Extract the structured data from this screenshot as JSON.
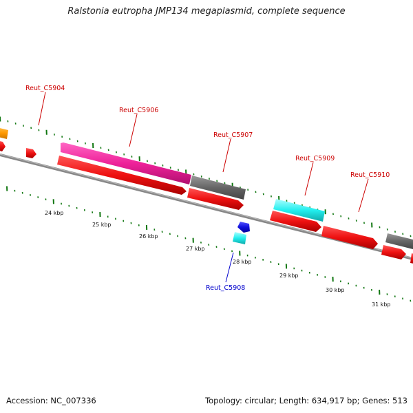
{
  "title": "Ralstonia eutropha JMP134 megaplasmid, complete sequence",
  "footer": {
    "accession": "Accession: NC_007336",
    "summary": "Topology: circular; Length: 634,917 bp; Genes: 513"
  },
  "colors": {
    "forward_cds": "#ee1111",
    "reverse_cds": "#ee1111",
    "magenta": "#ee2299",
    "gray": "#666666",
    "cyan": "#22eeee",
    "blue": "#1111dd",
    "orange": "#ff9900",
    "label_red": "#cc0000",
    "label_blue": "#0000cc",
    "tick_green": "#117711",
    "backbone": "#888888"
  },
  "gene_labels": [
    {
      "text": "Reut_C5904",
      "color": "red"
    },
    {
      "text": "Reut_C5906",
      "color": "red"
    },
    {
      "text": "Reut_C5907",
      "color": "red"
    },
    {
      "text": "Reut_C5909",
      "color": "red"
    },
    {
      "text": "Reut_C5910",
      "color": "red"
    },
    {
      "text": "Reut_C5908",
      "color": "blue"
    }
  ],
  "kbp_ticks": [
    "24 kbp",
    "25 kbp",
    "26 kbp",
    "27 kbp",
    "28 kbp",
    "29 kbp",
    "30 kbp",
    "31 kbp"
  ]
}
